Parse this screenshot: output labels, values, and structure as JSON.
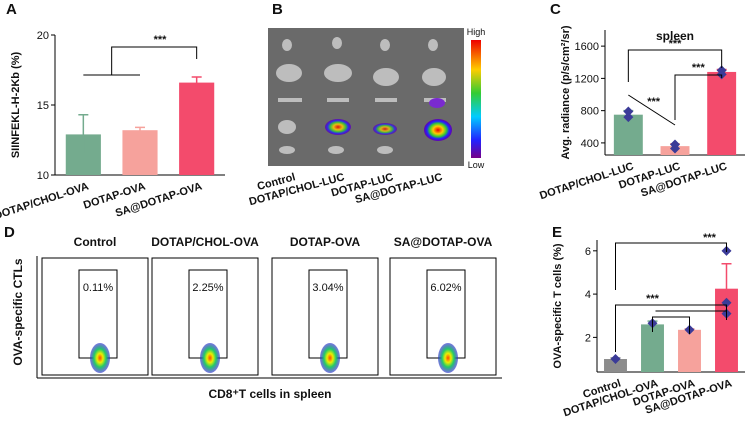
{
  "chart_data": [
    {
      "type": "bar",
      "panel": "A",
      "ylabel": "SIINFEKL-H-2Kb (%)",
      "categories": [
        "DOTAP/CHOL-OVA",
        "DOTAP-OVA",
        "SA@DOTAP-OVA"
      ],
      "values": [
        12.9,
        13.2,
        16.6
      ],
      "errors": [
        1.4,
        0.2,
        0.4
      ],
      "colors": [
        "#74ab8e",
        "#f6a29c",
        "#f34b6c"
      ],
      "ylim": [
        10,
        20
      ],
      "yticks": [
        10,
        15,
        20
      ],
      "annotations": [
        "***"
      ]
    },
    {
      "type": "bar",
      "panel": "C",
      "title": "spleen",
      "ylabel": "Avg. radiance (p/s/cm²/sr)",
      "categories": [
        "DOTAP/CHOL-LUC",
        "DOTAP-LUC",
        "SA@DOTAP-LUC"
      ],
      "values": [
        750,
        360,
        1280
      ],
      "errors": [
        50,
        30,
        30
      ],
      "points": [
        [
          720,
          790
        ],
        [
          330,
          380
        ],
        [
          1250,
          1300
        ]
      ],
      "colors": [
        "#74ab8e",
        "#f6a29c",
        "#f34b6c"
      ],
      "ylim": [
        250,
        1800
      ],
      "yticks": [
        400,
        800,
        1200,
        1600
      ],
      "annotations": [
        "***",
        "***",
        "***"
      ]
    },
    {
      "type": "bar",
      "panel": "E",
      "ylabel": "OVA-specific T cells (%)",
      "categories": [
        "Control",
        "DOTAP/CHOL-OVA",
        "DOTAP-OVA",
        "SA@DOTAP-OVA"
      ],
      "values": [
        1.0,
        2.6,
        2.35,
        4.25
      ],
      "errors": [
        0.05,
        0.15,
        0.05,
        1.15
      ],
      "points": [
        [
          1.0
        ],
        [
          2.65
        ],
        [
          2.35
        ],
        [
          6.0,
          3.6,
          3.1
        ]
      ],
      "colors": [
        "#8c8c8c",
        "#74ab8e",
        "#f6a29c",
        "#f34b6c"
      ],
      "ylim": [
        0.4,
        6.5
      ],
      "yticks": [
        2,
        4,
        6
      ],
      "annotations": [
        "***",
        "***"
      ]
    }
  ],
  "imaging": {
    "panel": "B",
    "scale_high": "High",
    "scale_low": "Low",
    "labels": [
      "Control",
      "DOTAP/CHOL-LUC",
      "DOTAP-LUC",
      "SA@DOTAP-LUC"
    ]
  },
  "flow": {
    "panel": "D",
    "ylabel": "OVA-specific CTLs",
    "xlabel": "CD8⁺T cells in spleen",
    "headers": [
      "Control",
      "DOTAP/CHOL-OVA",
      "DOTAP-OVA",
      "SA@DOTAP-OVA"
    ],
    "gates": [
      "0.11%",
      "2.25%",
      "3.04%",
      "6.02%"
    ]
  }
}
